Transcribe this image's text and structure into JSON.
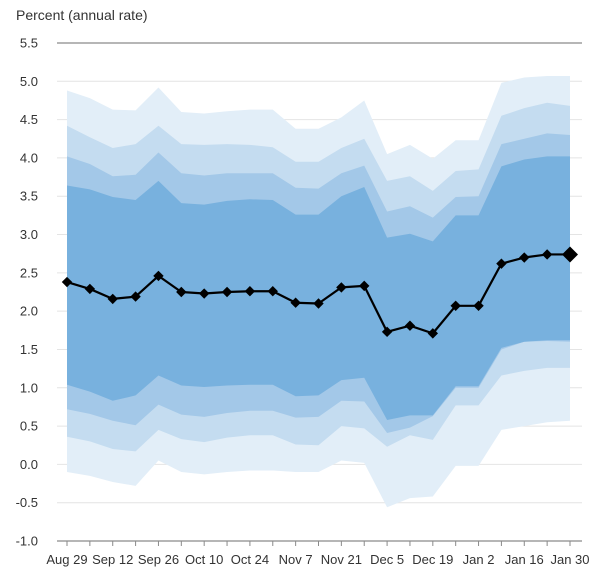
{
  "chart_data": {
    "type": "area",
    "ylabel": "Percent (annual rate)",
    "ylim": [
      -1.0,
      5.5
    ],
    "yticks": [
      "5.5",
      "5.0",
      "4.5",
      "4.0",
      "3.5",
      "3.0",
      "2.5",
      "2.0",
      "1.5",
      "1.0",
      "0.5",
      "0.0",
      "-0.5",
      "-1.0"
    ],
    "x_labels": [
      "Aug 29",
      "Sep 12",
      "Sep 26",
      "Oct 10",
      "Oct 24",
      "Nov 7",
      "Nov 21",
      "Dec 5",
      "Dec 19",
      "Jan 2",
      "Jan 16",
      "Jan 30"
    ],
    "grid": true,
    "colors": {
      "band_outer": "#e2eef8",
      "band_3": "#c4dcf0",
      "band_2": "#a3c8e8",
      "band_inner": "#78b1de",
      "line": "#000000"
    },
    "series": [
      {
        "values": [
          2.38,
          2.29,
          2.16,
          2.19,
          2.46,
          2.25,
          2.23,
          2.25,
          2.26,
          2.26,
          2.11,
          2.1,
          2.31,
          2.33,
          1.73,
          1.81,
          1.71,
          2.07,
          2.07,
          2.62,
          2.7,
          2.74,
          2.74
        ]
      }
    ],
    "bands": [
      {
        "upper": [
          4.88,
          4.78,
          4.63,
          4.62,
          4.92,
          4.6,
          4.58,
          4.61,
          4.63,
          4.63,
          4.38,
          4.38,
          4.53,
          4.75,
          4.05,
          4.17,
          3.99,
          4.23,
          4.23,
          4.98,
          5.05,
          5.07,
          5.07
        ],
        "lower": [
          -0.1,
          -0.15,
          -0.23,
          -0.28,
          0.05,
          -0.1,
          -0.13,
          -0.1,
          -0.08,
          -0.08,
          -0.1,
          -0.1,
          0.05,
          0.02,
          -0.56,
          -0.44,
          -0.42,
          -0.02,
          -0.02,
          0.45,
          0.5,
          0.55,
          0.57
        ]
      },
      {
        "upper": [
          4.42,
          4.27,
          4.13,
          4.18,
          4.42,
          4.18,
          4.17,
          4.18,
          4.17,
          4.14,
          3.95,
          3.95,
          4.13,
          4.25,
          3.7,
          3.76,
          3.57,
          3.83,
          3.85,
          4.55,
          4.65,
          4.72,
          4.68
        ],
        "lower": [
          0.36,
          0.3,
          0.2,
          0.17,
          0.45,
          0.33,
          0.29,
          0.35,
          0.38,
          0.38,
          0.26,
          0.25,
          0.5,
          0.47,
          0.23,
          0.38,
          0.32,
          0.77,
          0.77,
          1.16,
          1.22,
          1.26,
          1.26
        ]
      },
      {
        "upper": [
          4.02,
          3.92,
          3.76,
          3.78,
          4.07,
          3.8,
          3.77,
          3.8,
          3.8,
          3.8,
          3.61,
          3.6,
          3.8,
          3.9,
          3.3,
          3.37,
          3.22,
          3.49,
          3.5,
          4.18,
          4.25,
          4.32,
          4.3
        ],
        "lower": [
          0.72,
          0.66,
          0.57,
          0.51,
          0.78,
          0.65,
          0.62,
          0.67,
          0.7,
          0.7,
          0.61,
          0.62,
          0.83,
          0.82,
          0.41,
          0.48,
          0.63,
          1.0,
          1.0,
          1.5,
          1.6,
          1.61,
          1.6
        ]
      },
      {
        "upper": [
          3.64,
          3.59,
          3.49,
          3.45,
          3.7,
          3.41,
          3.39,
          3.44,
          3.46,
          3.45,
          3.26,
          3.26,
          3.5,
          3.62,
          2.96,
          3.01,
          2.91,
          3.25,
          3.25,
          3.89,
          3.98,
          4.02,
          4.02
        ],
        "lower": [
          1.04,
          0.95,
          0.83,
          0.9,
          1.16,
          1.03,
          1.01,
          1.03,
          1.04,
          1.04,
          0.89,
          0.9,
          1.1,
          1.13,
          0.58,
          0.64,
          0.64,
          1.02,
          1.02,
          1.52,
          1.6,
          1.62,
          1.62
        ]
      }
    ]
  }
}
